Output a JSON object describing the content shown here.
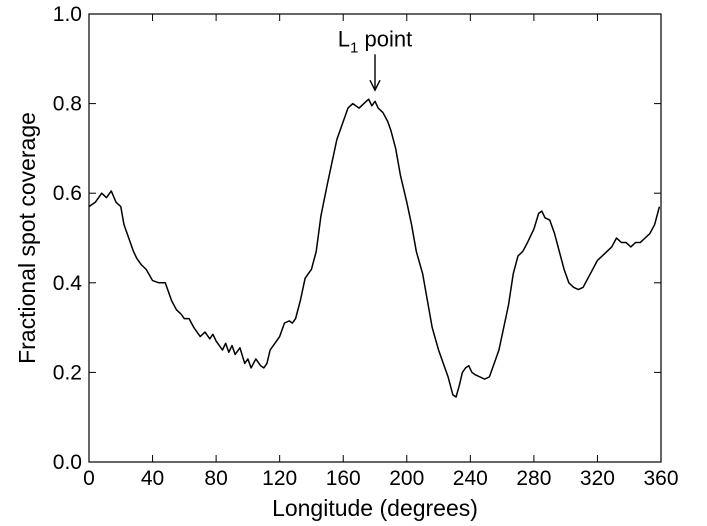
{
  "chart_data": {
    "type": "line",
    "xlabel": "Longitude (degrees)",
    "ylabel": "Fractional spot coverage",
    "xlim": [
      0,
      360
    ],
    "ylim": [
      0.0,
      1.0
    ],
    "xticks": [
      "0",
      "40",
      "80",
      "120",
      "160",
      "200",
      "240",
      "280",
      "320",
      "360"
    ],
    "yticks": [
      "0.0",
      "0.2",
      "0.4",
      "0.6",
      "0.8",
      "1.0"
    ],
    "grid": false,
    "annotation": {
      "text_main": "L",
      "text_sub": "1",
      "text_rest": " point",
      "x": 180,
      "y_tip": 0.83,
      "y_tail": 0.91
    },
    "series": [
      {
        "x": [
          0,
          4,
          8,
          11,
          14,
          17,
          20,
          22,
          25,
          28,
          30,
          33,
          36,
          40,
          44,
          48,
          50,
          52,
          55,
          58,
          60,
          63,
          66,
          70,
          73,
          76,
          78,
          80,
          82,
          84,
          86,
          88,
          90,
          92,
          95,
          98,
          100,
          102,
          105,
          108,
          110,
          112,
          114,
          116,
          118,
          120,
          123,
          126,
          128,
          130,
          133,
          136,
          140,
          143,
          146,
          150,
          153,
          156,
          160,
          163,
          166,
          170,
          173,
          176,
          178,
          180,
          182,
          185,
          188,
          190,
          193,
          196,
          200,
          203,
          206,
          210,
          213,
          216,
          220,
          223,
          226,
          229,
          231,
          233,
          235,
          237,
          239,
          241,
          243,
          246,
          249,
          252,
          255,
          258,
          261,
          264,
          267,
          270,
          273,
          276,
          280,
          283,
          285,
          287,
          290,
          293,
          296,
          299,
          302,
          305,
          308,
          311,
          314,
          317,
          320,
          323,
          326,
          329,
          332,
          335,
          338,
          341,
          344,
          347,
          350,
          353,
          356,
          359
        ],
        "y": [
          0.57,
          0.58,
          0.6,
          0.59,
          0.605,
          0.58,
          0.57,
          0.53,
          0.5,
          0.47,
          0.455,
          0.44,
          0.43,
          0.405,
          0.4,
          0.4,
          0.38,
          0.36,
          0.34,
          0.33,
          0.32,
          0.32,
          0.3,
          0.28,
          0.29,
          0.275,
          0.285,
          0.27,
          0.26,
          0.25,
          0.265,
          0.245,
          0.26,
          0.24,
          0.255,
          0.22,
          0.23,
          0.21,
          0.23,
          0.215,
          0.21,
          0.22,
          0.25,
          0.26,
          0.27,
          0.28,
          0.31,
          0.315,
          0.31,
          0.32,
          0.36,
          0.41,
          0.43,
          0.47,
          0.55,
          0.62,
          0.67,
          0.72,
          0.76,
          0.79,
          0.8,
          0.79,
          0.8,
          0.81,
          0.795,
          0.805,
          0.79,
          0.78,
          0.76,
          0.74,
          0.7,
          0.64,
          0.58,
          0.53,
          0.47,
          0.42,
          0.36,
          0.3,
          0.25,
          0.22,
          0.19,
          0.15,
          0.145,
          0.17,
          0.2,
          0.21,
          0.215,
          0.2,
          0.195,
          0.19,
          0.185,
          0.19,
          0.22,
          0.25,
          0.3,
          0.35,
          0.42,
          0.46,
          0.47,
          0.49,
          0.52,
          0.555,
          0.56,
          0.545,
          0.54,
          0.51,
          0.47,
          0.43,
          0.4,
          0.39,
          0.385,
          0.39,
          0.41,
          0.43,
          0.45,
          0.46,
          0.47,
          0.48,
          0.5,
          0.49,
          0.49,
          0.48,
          0.49,
          0.49,
          0.5,
          0.51,
          0.53,
          0.57
        ]
      }
    ]
  }
}
